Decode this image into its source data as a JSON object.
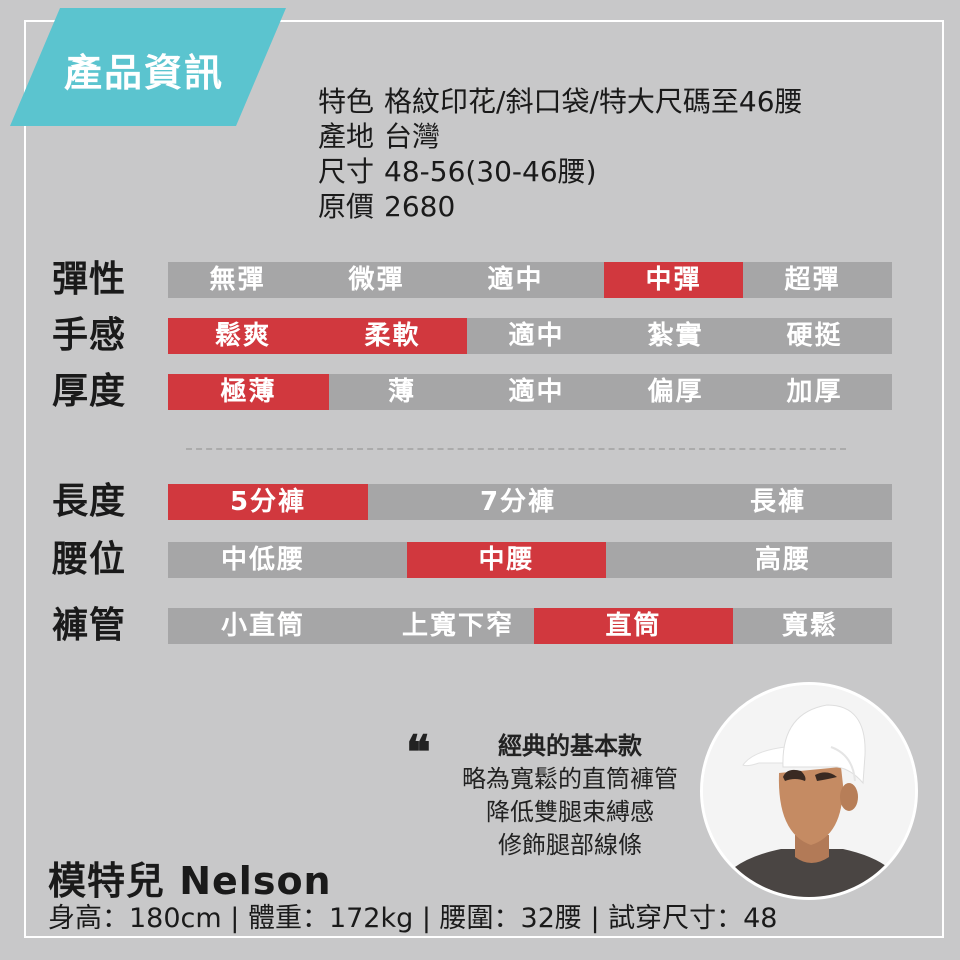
{
  "banner": {
    "title": "產品資訊"
  },
  "info": [
    {
      "key": "特色",
      "value": "格紋印花/斜口袋/特大尺碼至46腰"
    },
    {
      "key": "產地",
      "value": "台灣"
    },
    {
      "key": "尺寸",
      "value": "48-56(30-46腰)"
    },
    {
      "key": "原價",
      "value": "2680"
    }
  ],
  "ratings": [
    {
      "label": "彈性",
      "options": [
        "無彈",
        "微彈",
        "適中",
        "中彈",
        "超彈"
      ],
      "selected": [
        "中彈"
      ]
    },
    {
      "label": "手感",
      "options": [
        "鬆爽",
        "柔軟",
        "適中",
        "紮實",
        "硬挺"
      ],
      "selected": [
        "鬆爽",
        "柔軟"
      ]
    },
    {
      "label": "厚度",
      "options": [
        "極薄",
        "薄",
        "適中",
        "偏厚",
        "加厚"
      ],
      "selected": [
        "極薄"
      ]
    },
    {
      "label": "長度",
      "options": [
        "5分褲",
        "7分褲",
        "長褲"
      ],
      "selected": [
        "5分褲"
      ]
    },
    {
      "label": "腰位",
      "options": [
        "中低腰",
        "中腰",
        "高腰"
      ],
      "selected": [
        "中腰"
      ]
    },
    {
      "label": "褲管",
      "options": [
        "小直筒",
        "上寬下窄",
        "直筒",
        "寬鬆"
      ],
      "selected": [
        "直筒"
      ]
    }
  ],
  "quote": {
    "lines": [
      "經典的基本款",
      "略為寬鬆的直筒褲管",
      "降低雙腿束縛感",
      "修飾腿部線條"
    ]
  },
  "model": {
    "name": "模特兒 Nelson",
    "stats": "身高：180cm | 體重：172kg | 腰圍：32腰 | 試穿尺寸：48"
  },
  "colors": {
    "accent": "#d1383e",
    "banner": "#5bc4cf",
    "bar": "#a6a6a7",
    "background": "#c8c8c9"
  }
}
